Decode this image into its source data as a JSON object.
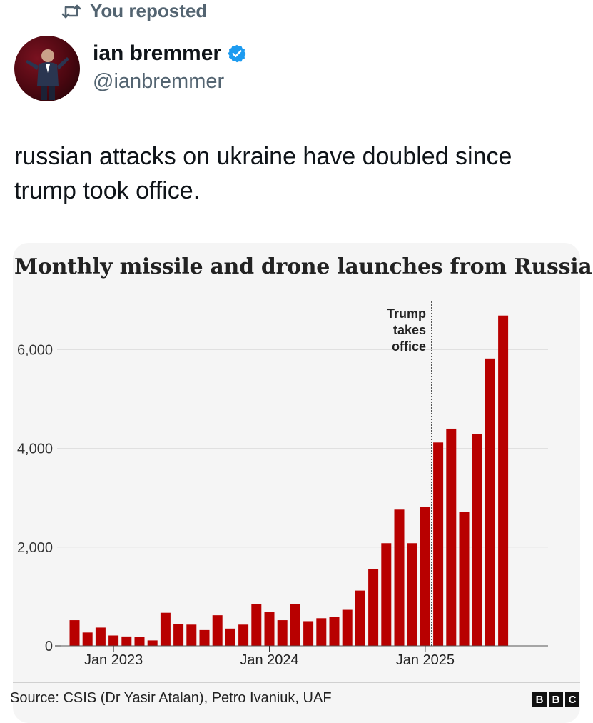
{
  "repost": {
    "label": "You reposted",
    "icon": "repost-icon"
  },
  "author": {
    "display_name": "ian bremmer",
    "handle": "@ianbremmer",
    "verified_icon": "verified-badge-icon",
    "avatar": "avatar"
  },
  "tweet": {
    "text": "russian attacks on ukraine have doubled since trump took office."
  },
  "colors": {
    "bar": "#b80000",
    "accent_verified": "#1d9bf0",
    "grid": "#dcdcdc",
    "muted": "#536471"
  },
  "chart_data": {
    "type": "bar",
    "title": "Monthly missile and drone launches from Russia",
    "source": "Source: CSIS (Dr Yasir Atalan), Petro Ivaniuk, UAF",
    "publisher_logo": [
      "B",
      "B",
      "C"
    ],
    "ylim": [
      0,
      7000
    ],
    "yticks": [
      {
        "value": 0,
        "label": "0"
      },
      {
        "value": 2000,
        "label": "2,000"
      },
      {
        "value": 4000,
        "label": "4,000"
      },
      {
        "value": 6000,
        "label": "6,000"
      }
    ],
    "categories": [
      "Oct 2022",
      "Nov 2022",
      "Dec 2022",
      "Jan 2023",
      "Feb 2023",
      "Mar 2023",
      "Apr 2023",
      "May 2023",
      "Jun 2023",
      "Jul 2023",
      "Aug 2023",
      "Sep 2023",
      "Oct 2023",
      "Nov 2023",
      "Dec 2023",
      "Jan 2024",
      "Feb 2024",
      "Mar 2024",
      "Apr 2024",
      "May 2024",
      "Jun 2024",
      "Jul 2024",
      "Aug 2024",
      "Sep 2024",
      "Oct 2024",
      "Nov 2024",
      "Dec 2024",
      "Jan 2025",
      "Feb 2025",
      "Mar 2025",
      "Apr 2025",
      "May 2025",
      "Jun 2025",
      "Jul 2025"
    ],
    "values": [
      520,
      270,
      370,
      210,
      190,
      180,
      110,
      670,
      440,
      430,
      320,
      620,
      350,
      430,
      840,
      680,
      520,
      850,
      500,
      560,
      590,
      730,
      1120,
      1560,
      2080,
      2760,
      2080,
      2820,
      4120,
      4400,
      2720,
      4290,
      5820,
      6690
    ],
    "xticks": [
      {
        "category": "Jan 2023",
        "label": "Jan 2023"
      },
      {
        "category": "Jan 2024",
        "label": "Jan 2024"
      },
      {
        "category": "Jan 2025",
        "label": "Jan 2025"
      }
    ],
    "annotation": {
      "text": [
        "Trump",
        "takes",
        "office"
      ],
      "between": [
        "Jan 2025",
        "Feb 2025"
      ],
      "style": "dotted vertical line"
    },
    "grid": true,
    "legend": "none"
  }
}
